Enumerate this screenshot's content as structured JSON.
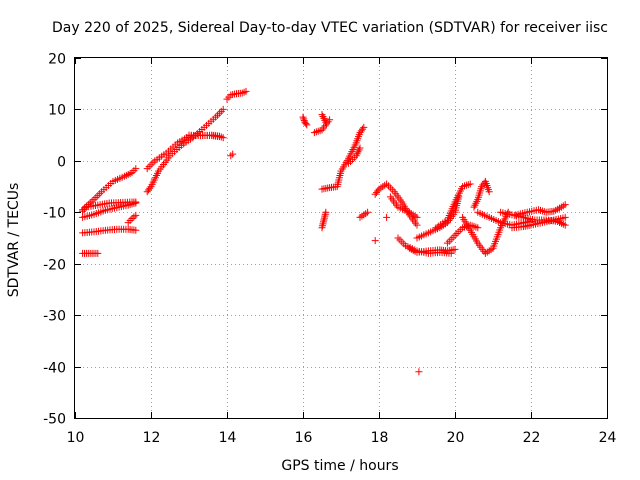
{
  "chart_data": {
    "type": "scatter",
    "title": "Day 220 of 2025, Sidereal Day-to-day VTEC variation (SDTVAR) for receiver iisc",
    "xlabel": "GPS time / hours",
    "ylabel": "SDTVAR / TECUs",
    "xlim": [
      10,
      24
    ],
    "ylim": [
      -50,
      20
    ],
    "xticks": [
      "10",
      "12",
      "14",
      "16",
      "18",
      "20",
      "22",
      "24"
    ],
    "yticks": [
      "20",
      "10",
      "0",
      "-10",
      "-20",
      "-30",
      "-40",
      "-50"
    ],
    "grid": true,
    "marker": "plus",
    "color": "#ff0000",
    "series": [
      {
        "x": [
          10.2,
          10.3,
          10.5,
          10.7,
          11.0,
          11.3,
          11.5,
          11.6
        ],
        "y": [
          -9.5,
          -8.8,
          -7.5,
          -6.0,
          -4.0,
          -3.0,
          -2.3,
          -1.5
        ]
      },
      {
        "x": [
          10.2,
          10.3,
          10.6,
          10.9,
          11.2,
          11.5,
          11.6
        ],
        "y": [
          -9.8,
          -9.0,
          -8.6,
          -8.2,
          -8.1,
          -8.0,
          -8.0
        ]
      },
      {
        "x": [
          10.2,
          10.5,
          10.8,
          11.1,
          11.4,
          11.6
        ],
        "y": [
          -11.0,
          -10.4,
          -9.6,
          -9.1,
          -8.6,
          -8.2
        ]
      },
      {
        "x": [
          11.4,
          11.5,
          11.6
        ],
        "y": [
          -12.0,
          -11.2,
          -10.6
        ]
      },
      {
        "x": [
          10.2,
          10.5,
          10.8,
          11.1,
          11.4,
          11.6
        ],
        "y": [
          -14.0,
          -13.8,
          -13.5,
          -13.3,
          -13.3,
          -13.5
        ]
      },
      {
        "x": [
          10.2,
          10.35,
          10.5,
          10.6
        ],
        "y": [
          -18.0,
          -18.0,
          -18.0,
          -18.0
        ]
      },
      {
        "x": [
          11.9,
          12.0,
          12.2,
          12.5,
          12.8,
          13.1,
          13.4,
          13.7,
          13.9
        ],
        "y": [
          -6.0,
          -5.0,
          -2.0,
          1.0,
          3.0,
          4.5,
          6.5,
          8.5,
          10.0
        ]
      },
      {
        "x": [
          11.9,
          12.1,
          12.4,
          12.7,
          13.0,
          13.3,
          13.6,
          13.8
        ],
        "y": [
          -1.5,
          0.0,
          1.5,
          3.5,
          4.8,
          5.0,
          4.9,
          4.7
        ]
      },
      {
        "x": [
          13.0,
          13.3,
          13.6,
          13.8,
          13.9
        ],
        "y": [
          5.0,
          4.9,
          5.0,
          4.8,
          4.5
        ]
      },
      {
        "x": [
          14.0,
          14.1,
          14.2,
          14.4,
          14.5
        ],
        "y": [
          12.0,
          12.8,
          13.0,
          13.2,
          13.5
        ]
      },
      {
        "x": [
          14.1,
          14.15
        ],
        "y": [
          1.0,
          1.3
        ]
      },
      {
        "x": [
          16.0,
          16.05,
          16.1
        ],
        "y": [
          8.5,
          7.5,
          7.0
        ]
      },
      {
        "x": [
          16.3,
          16.5,
          16.7
        ],
        "y": [
          5.5,
          6.0,
          8.0
        ]
      },
      {
        "x": [
          16.5,
          16.6
        ],
        "y": [
          9.0,
          7.5
        ]
      },
      {
        "x": [
          16.5,
          16.7,
          16.9,
          17.0,
          17.2,
          17.4,
          17.5,
          17.6
        ],
        "y": [
          -5.5,
          -5.2,
          -5.0,
          -2.0,
          0.5,
          3.5,
          5.5,
          6.5
        ]
      },
      {
        "x": [
          16.5,
          16.55,
          16.6
        ],
        "y": [
          -13.0,
          -11.5,
          -10.0
        ]
      },
      {
        "x": [
          17.2,
          17.4,
          17.5
        ],
        "y": [
          -0.5,
          1.0,
          2.5
        ]
      },
      {
        "x": [
          17.5,
          17.6,
          17.7
        ],
        "y": [
          -11.0,
          -10.5,
          -10.0
        ]
      },
      {
        "x": [
          17.9
        ],
        "y": [
          -15.5
        ]
      },
      {
        "x": [
          18.2
        ],
        "y": [
          -11.0
        ]
      },
      {
        "x": [
          17.9,
          18.0,
          18.2,
          18.4,
          18.6,
          18.8,
          19.0
        ],
        "y": [
          -6.5,
          -5.5,
          -4.5,
          -6.0,
          -8.0,
          -10.5,
          -12.5
        ]
      },
      {
        "x": [
          18.3,
          18.5,
          18.8,
          19.0
        ],
        "y": [
          -7.0,
          -9.0,
          -10.0,
          -11.0
        ]
      },
      {
        "x": [
          18.5,
          18.7,
          19.0,
          19.3,
          19.6,
          19.9
        ],
        "y": [
          -15.0,
          -16.5,
          -17.5,
          -18.0,
          -17.8,
          -18.0
        ]
      },
      {
        "x": [
          18.8,
          19.0,
          19.3,
          19.6,
          19.8,
          20.0
        ],
        "y": [
          -17.0,
          -17.8,
          -17.5,
          -17.3,
          -17.5,
          -17.2
        ]
      },
      {
        "x": [
          19.0,
          19.3,
          19.6,
          19.8,
          20.0,
          20.1
        ],
        "y": [
          -15.0,
          -14.0,
          -13.0,
          -12.0,
          -10.0,
          -7.0
        ]
      },
      {
        "x": [
          19.5,
          19.8,
          20.0,
          20.2,
          20.4
        ],
        "y": [
          -13.0,
          -11.5,
          -8.0,
          -5.0,
          -4.5
        ]
      },
      {
        "x": [
          19.8,
          20.0,
          20.2,
          20.4,
          20.6
        ],
        "y": [
          -16.0,
          -14.5,
          -13.0,
          -12.5,
          -13.0
        ]
      },
      {
        "x": [
          20.2,
          20.4,
          20.6,
          20.8,
          21.0,
          21.2,
          21.4
        ],
        "y": [
          -11.0,
          -13.5,
          -16.0,
          -18.0,
          -17.0,
          -13.0,
          -10.0
        ]
      },
      {
        "x": [
          20.5,
          20.6,
          20.7,
          20.8,
          20.9
        ],
        "y": [
          -9.0,
          -7.5,
          -5.0,
          -4.0,
          -6.0
        ]
      },
      {
        "x": [
          20.6,
          20.9,
          21.2,
          21.5,
          21.8,
          22.0
        ],
        "y": [
          -10.0,
          -11.0,
          -12.0,
          -12.5,
          -12.0,
          -11.8
        ]
      },
      {
        "x": [
          21.2,
          21.5,
          21.8,
          22.1,
          22.4,
          22.7,
          22.9
        ],
        "y": [
          -10.0,
          -10.5,
          -11.0,
          -11.5,
          -11.5,
          -11.8,
          -12.5
        ]
      },
      {
        "x": [
          21.5,
          21.8,
          22.0,
          22.3,
          22.6,
          22.9
        ],
        "y": [
          -13.0,
          -12.8,
          -12.5,
          -12.0,
          -11.5,
          -11.0
        ]
      },
      {
        "x": [
          21.6,
          21.9,
          22.2,
          22.4,
          22.6,
          22.8,
          22.9
        ],
        "y": [
          -10.5,
          -10.0,
          -9.5,
          -10.0,
          -9.8,
          -9.0,
          -8.5
        ]
      },
      {
        "x": [
          19.05
        ],
        "y": [
          -41.0
        ]
      }
    ]
  }
}
